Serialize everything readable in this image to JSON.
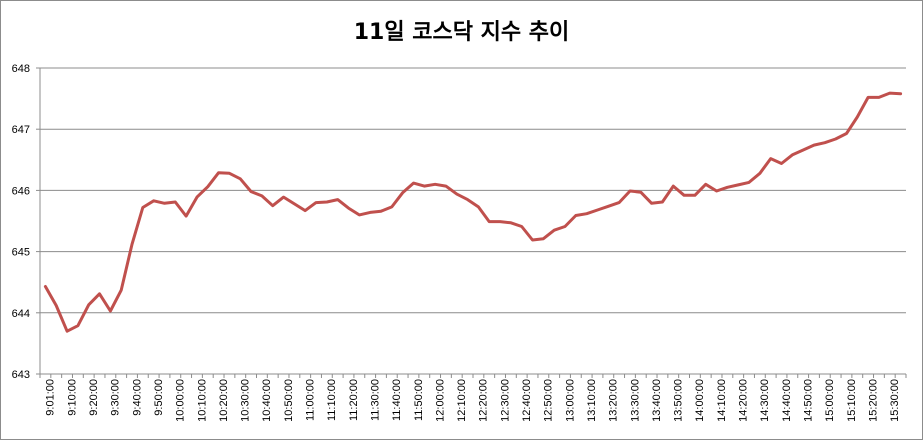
{
  "chart_data": {
    "type": "line",
    "title": "11일 코스닥 지수 추이",
    "xlabel": "",
    "ylabel": "",
    "ylim": [
      643,
      648
    ],
    "yticks": [
      "643",
      "644",
      "645",
      "646",
      "647",
      "648"
    ],
    "xtick_labels": [
      "9:01:00",
      "9:10:00",
      "9:20:00",
      "9:30:00",
      "9:40:00",
      "9:50:00",
      "10:00:00",
      "10:10:00",
      "10:20:00",
      "10:30:00",
      "10:40:00",
      "10:50:00",
      "11:00:00",
      "11:10:00",
      "11:20:00",
      "11:30:00",
      "11:40:00",
      "11:50:00",
      "12:00:00",
      "12:10:00",
      "12:20:00",
      "12:30:00",
      "12:40:00",
      "12:50:00",
      "13:00:00",
      "13:10:00",
      "13:20:00",
      "13:30:00",
      "13:40:00",
      "13:50:00",
      "14:00:00",
      "14:10:00",
      "14:20:00",
      "14:30:00",
      "14:40:00",
      "14:50:00",
      "15:00:00",
      "15:10:00",
      "15:20:00",
      "15:30:00"
    ],
    "grid": true,
    "line_color": "#c0504d",
    "series": [
      {
        "values": [
          644.43,
          644.12,
          643.7,
          643.79,
          644.13,
          644.31,
          644.03,
          644.37,
          645.12,
          645.72,
          645.83,
          645.79,
          645.81,
          645.58,
          645.89,
          646.06,
          646.29,
          646.28,
          646.19,
          645.98,
          645.91,
          645.75,
          645.89,
          645.78,
          645.67,
          645.8,
          645.81,
          645.85,
          645.71,
          645.6,
          645.64,
          645.66,
          645.73,
          645.96,
          646.12,
          646.07,
          646.1,
          646.07,
          645.94,
          645.85,
          645.73,
          645.49,
          645.49,
          645.47,
          645.41,
          645.19,
          645.21,
          645.35,
          645.41,
          645.59,
          645.62,
          645.68,
          645.74,
          645.8,
          645.99,
          645.97,
          645.79,
          645.81,
          646.07,
          645.92,
          645.92,
          646.1,
          645.99,
          646.05,
          646.09,
          646.13,
          646.28,
          646.52,
          646.44,
          646.58,
          646.66,
          646.74,
          646.78,
          646.84,
          646.93,
          647.2,
          647.52,
          647.52,
          647.59,
          647.58
        ]
      }
    ]
  }
}
